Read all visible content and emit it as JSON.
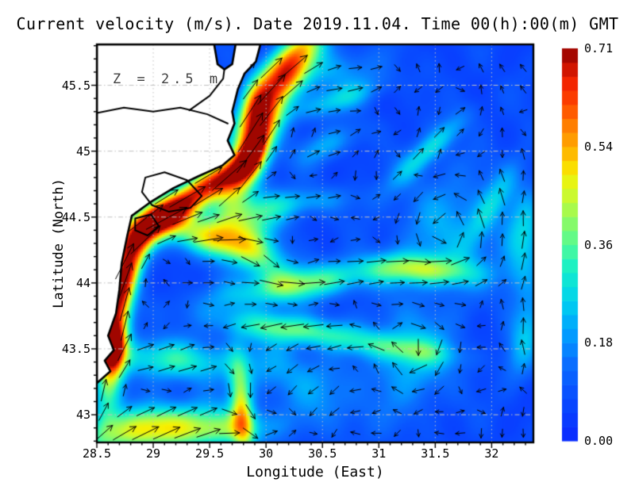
{
  "title": "Current velocity (m/s). Date 2019.11.04. Time 00(h):00(m) GMT",
  "annotation": "Z = 2.5 m",
  "axes": {
    "xlabel": "Longitude (East)",
    "ylabel": "Latitude (North)",
    "x_tick_values": [
      28.5,
      29,
      29.5,
      30,
      30.5,
      31,
      31.5,
      32
    ],
    "x_tick_labels": [
      "28.5",
      "29",
      "29.5",
      "30",
      "30.5",
      "31",
      "31.5",
      "32"
    ],
    "y_tick_values": [
      43,
      43.5,
      44,
      44.5,
      45,
      45.5
    ],
    "y_tick_labels": [
      "43",
      "43.5",
      "44",
      "44.5",
      "45",
      "45.5"
    ],
    "minor_tick_step": 0.1
  },
  "colorbar": {
    "min": 0,
    "max": 0.71,
    "tick_labels": [
      "0.00",
      "0.18",
      "0.36",
      "0.54",
      "0.71"
    ],
    "stops": [
      [
        0.0,
        "#0a28ff"
      ],
      [
        0.1,
        "#0848ff"
      ],
      [
        0.2,
        "#0a70ff"
      ],
      [
        0.28,
        "#00a2ff"
      ],
      [
        0.36,
        "#00d2ee"
      ],
      [
        0.44,
        "#16f0c8"
      ],
      [
        0.5,
        "#52fa96"
      ],
      [
        0.56,
        "#8cfa64"
      ],
      [
        0.62,
        "#c8fa32"
      ],
      [
        0.68,
        "#f8f000"
      ],
      [
        0.74,
        "#ffb400"
      ],
      [
        0.8,
        "#ff8200"
      ],
      [
        0.86,
        "#ff4600"
      ],
      [
        0.92,
        "#f01e00"
      ],
      [
        1.0,
        "#8c0000"
      ]
    ]
  },
  "chart_data": {
    "type": "heatmap",
    "overlay": "quiver",
    "variable": "current velocity magnitude (m/s)",
    "depth_m": 2.5,
    "date": "2019.11.04",
    "time_gmt": "00:00",
    "lon_range": [
      28.5,
      32.37
    ],
    "lat_range": [
      42.79,
      45.81
    ],
    "speed_range": [
      0,
      0.71
    ],
    "background_speed": 0.07,
    "features": [
      {
        "type": "streak",
        "name": "coastal-jet-south",
        "c": [
          28.66,
          43.62
        ],
        "sx": 0.42,
        "sy": 0.09,
        "rot": 82,
        "amp": 0.5,
        "dir": 80
      },
      {
        "type": "streak",
        "name": "coastal-jet-south-core",
        "c": [
          28.64,
          43.52
        ],
        "sx": 0.11,
        "sy": 0.06,
        "rot": 82,
        "amp": 0.3,
        "dir": 80
      },
      {
        "type": "streak",
        "name": "coastal-jet-lower-mid",
        "c": [
          28.8,
          44.15
        ],
        "sx": 0.3,
        "sy": 0.08,
        "rot": 65,
        "amp": 0.38,
        "dir": 62
      },
      {
        "type": "streak",
        "name": "coastal-jet-mid",
        "c": [
          29.05,
          44.48
        ],
        "sx": 0.38,
        "sy": 0.1,
        "rot": 27,
        "amp": 0.5,
        "dir": 30
      },
      {
        "type": "streak",
        "name": "coastal-jet-mid-core",
        "c": [
          29.12,
          44.52
        ],
        "sx": 0.14,
        "sy": 0.07,
        "rot": 27,
        "amp": 0.22,
        "dir": 30
      },
      {
        "type": "streak",
        "name": "jet-cape-segment",
        "c": [
          29.55,
          44.78
        ],
        "sx": 0.24,
        "sy": 0.08,
        "rot": 25,
        "amp": 0.4,
        "dir": 30
      },
      {
        "type": "streak",
        "name": "danube-delta-jet",
        "c": [
          29.87,
          45.0
        ],
        "sx": 0.3,
        "sy": 0.11,
        "rot": 62,
        "amp": 0.52,
        "dir": 58
      },
      {
        "type": "streak",
        "name": "danube-delta-jet-core",
        "c": [
          29.9,
          45.03
        ],
        "sx": 0.13,
        "sy": 0.06,
        "rot": 62,
        "amp": 0.26,
        "dir": 58
      },
      {
        "type": "streak",
        "name": "jet-north-of-delta",
        "c": [
          29.88,
          45.32
        ],
        "sx": 0.18,
        "sy": 0.09,
        "rot": 72,
        "amp": 0.24,
        "dir": 66
      },
      {
        "type": "streak",
        "name": "delta-outflow-ne",
        "c": [
          30.12,
          45.5
        ],
        "sx": 0.3,
        "sy": 0.11,
        "rot": 45,
        "amp": 0.33,
        "dir": 45
      },
      {
        "type": "streak",
        "name": "outflow-top-edge",
        "c": [
          30.25,
          45.74
        ],
        "sx": 0.26,
        "sy": 0.1,
        "rot": 40,
        "amp": 0.28,
        "dir": 42
      },
      {
        "type": "streak",
        "name": "top-strip-east-drift",
        "c": [
          30.55,
          45.6
        ],
        "sx": 0.35,
        "sy": 0.12,
        "rot": 5,
        "amp": 0.12,
        "dir": 8
      },
      {
        "type": "streak",
        "name": "meander-east-44.3",
        "c": [
          29.55,
          44.33
        ],
        "sx": 0.3,
        "sy": 0.1,
        "rot": -12,
        "amp": 0.34,
        "dir": 8
      },
      {
        "type": "streak",
        "name": "meander-fan",
        "c": [
          29.85,
          44.5
        ],
        "sx": 0.26,
        "sy": 0.12,
        "rot": 10,
        "amp": 0.24,
        "dir": 15
      },
      {
        "type": "streak",
        "name": "filament-se",
        "c": [
          29.95,
          44.18
        ],
        "sx": 0.24,
        "sy": 0.12,
        "rot": -35,
        "amp": 0.2,
        "dir": -55
      },
      {
        "type": "streak",
        "name": "band-44-eastward",
        "c": [
          30.35,
          44.0
        ],
        "sx": 0.55,
        "sy": 0.09,
        "rot": 8,
        "amp": 0.28,
        "dir": 8
      },
      {
        "type": "streak",
        "name": "band-43.7-westward",
        "c": [
          30.25,
          43.65
        ],
        "sx": 0.45,
        "sy": 0.08,
        "rot": -6,
        "amp": 0.28,
        "dir": 188
      },
      {
        "type": "streak",
        "name": "south-band-west",
        "c": [
          28.95,
          42.9
        ],
        "sx": 0.4,
        "sy": 0.12,
        "rot": 8,
        "amp": 0.38,
        "dir": 28
      },
      {
        "type": "streak",
        "name": "south-band-east",
        "c": [
          29.6,
          42.88
        ],
        "sx": 0.35,
        "sy": 0.1,
        "rot": 4,
        "amp": 0.24,
        "dir": 14
      },
      {
        "type": "streak",
        "name": "band-43.4",
        "c": [
          29.15,
          43.42
        ],
        "sx": 0.45,
        "sy": 0.11,
        "rot": -4,
        "amp": 0.24,
        "dir": 16
      },
      {
        "type": "streak",
        "name": "southward-streak-29.8",
        "c": [
          29.78,
          43.05
        ],
        "sx": 0.26,
        "sy": 0.07,
        "rot": 95,
        "amp": 0.34,
        "dir": 268
      },
      {
        "type": "streak",
        "name": "sw-drift",
        "c": [
          30.35,
          43.25
        ],
        "sx": 0.45,
        "sy": 0.18,
        "rot": -25,
        "amp": 0.12,
        "dir": 215
      },
      {
        "type": "vortex",
        "name": "eddy-se-clockwise",
        "c": [
          31.3,
          43.45
        ],
        "r": 0.26,
        "amp": 0.2,
        "spin": "cw"
      },
      {
        "type": "streak",
        "name": "eddy-se-north-arc",
        "c": [
          31.2,
          43.5
        ],
        "sx": 0.35,
        "sy": 0.07,
        "rot": -6,
        "amp": 0.17,
        "dir": 192
      },
      {
        "type": "vortex",
        "name": "eddy-east-counterclockwise",
        "c": [
          31.6,
          44.42
        ],
        "r": 0.32,
        "amp": 0.16,
        "spin": "ccw"
      },
      {
        "type": "streak",
        "name": "eddy-east-south-arc",
        "c": [
          31.42,
          44.1
        ],
        "sx": 0.34,
        "sy": 0.08,
        "rot": -4,
        "amp": 0.27,
        "dir": 10
      },
      {
        "type": "streak",
        "name": "eddy-east-east-arc",
        "c": [
          32.0,
          44.6
        ],
        "sx": 0.28,
        "sy": 0.08,
        "rot": 55,
        "amp": 0.16,
        "dir": 110
      },
      {
        "type": "streak",
        "name": "streak-northeast",
        "c": [
          31.45,
          45.02
        ],
        "sx": 0.3,
        "sy": 0.07,
        "rot": 38,
        "amp": 0.2,
        "dir": 40
      },
      {
        "type": "streak",
        "name": "streak-north-mid",
        "c": [
          30.6,
          45.38
        ],
        "sx": 0.28,
        "sy": 0.07,
        "rot": 15,
        "amp": 0.17,
        "dir": 20
      },
      {
        "type": "streak",
        "name": "patch-north",
        "c": [
          30.55,
          45.05
        ],
        "sx": 0.22,
        "sy": 0.08,
        "rot": 20,
        "amp": 0.13,
        "dir": 25
      },
      {
        "type": "streak",
        "name": "right-edge-patch",
        "c": [
          32.28,
          44.3
        ],
        "sx": 0.3,
        "sy": 0.12,
        "rot": 85,
        "amp": 0.18,
        "dir": 85
      },
      {
        "type": "streak",
        "name": "right-edge-patch-south",
        "c": [
          32.3,
          43.6
        ],
        "sx": 0.24,
        "sy": 0.1,
        "rot": 75,
        "amp": 0.15,
        "dir": 95
      },
      {
        "type": "streak",
        "name": "faint-band-center",
        "c": [
          30.35,
          44.62
        ],
        "sx": 0.3,
        "sy": 0.07,
        "rot": 4,
        "amp": 0.12,
        "dir": 2
      }
    ],
    "land": {
      "outer": [
        [
          28.5,
          45.81
        ],
        [
          29.54,
          45.81
        ],
        [
          29.57,
          45.66
        ],
        [
          29.63,
          45.62
        ],
        [
          29.7,
          45.66
        ],
        [
          29.73,
          45.81
        ],
        [
          29.95,
          45.81
        ],
        [
          29.91,
          45.68
        ],
        [
          29.81,
          45.59
        ],
        [
          29.75,
          45.47
        ],
        [
          29.7,
          45.3
        ],
        [
          29.72,
          45.21
        ],
        [
          29.66,
          45.08
        ],
        [
          29.72,
          44.97
        ],
        [
          29.61,
          44.89
        ],
        [
          29.4,
          44.81
        ],
        [
          29.18,
          44.72
        ],
        [
          28.97,
          44.61
        ],
        [
          28.81,
          44.51
        ],
        [
          28.77,
          44.36
        ],
        [
          28.72,
          44.15
        ],
        [
          28.7,
          43.95
        ],
        [
          28.67,
          43.77
        ],
        [
          28.6,
          43.6
        ],
        [
          28.65,
          43.49
        ],
        [
          28.57,
          43.41
        ],
        [
          28.62,
          43.33
        ],
        [
          28.5,
          43.24
        ]
      ],
      "lakes": [
        [
          [
            28.93,
            44.8
          ],
          [
            29.1,
            44.84
          ],
          [
            29.3,
            44.78
          ],
          [
            29.43,
            44.66
          ],
          [
            29.33,
            44.57
          ],
          [
            29.14,
            44.54
          ],
          [
            28.99,
            44.59
          ],
          [
            28.9,
            44.69
          ]
        ],
        [
          [
            28.84,
            44.49
          ],
          [
            28.98,
            44.52
          ],
          [
            29.05,
            44.43
          ],
          [
            28.95,
            44.36
          ],
          [
            28.84,
            44.4
          ]
        ]
      ],
      "rivers": [
        [
          [
            28.5,
            45.29
          ],
          [
            28.74,
            45.33
          ],
          [
            29.0,
            45.3
          ],
          [
            29.24,
            45.33
          ],
          [
            29.48,
            45.28
          ],
          [
            29.66,
            45.21
          ]
        ],
        [
          [
            29.32,
            45.31
          ],
          [
            29.5,
            45.42
          ],
          [
            29.62,
            45.55
          ],
          [
            29.63,
            45.62
          ]
        ]
      ]
    },
    "quiver": {
      "lon_start": 28.56,
      "lon_step": 0.186,
      "lat_start": 42.86,
      "lat_step": 0.163
    }
  }
}
